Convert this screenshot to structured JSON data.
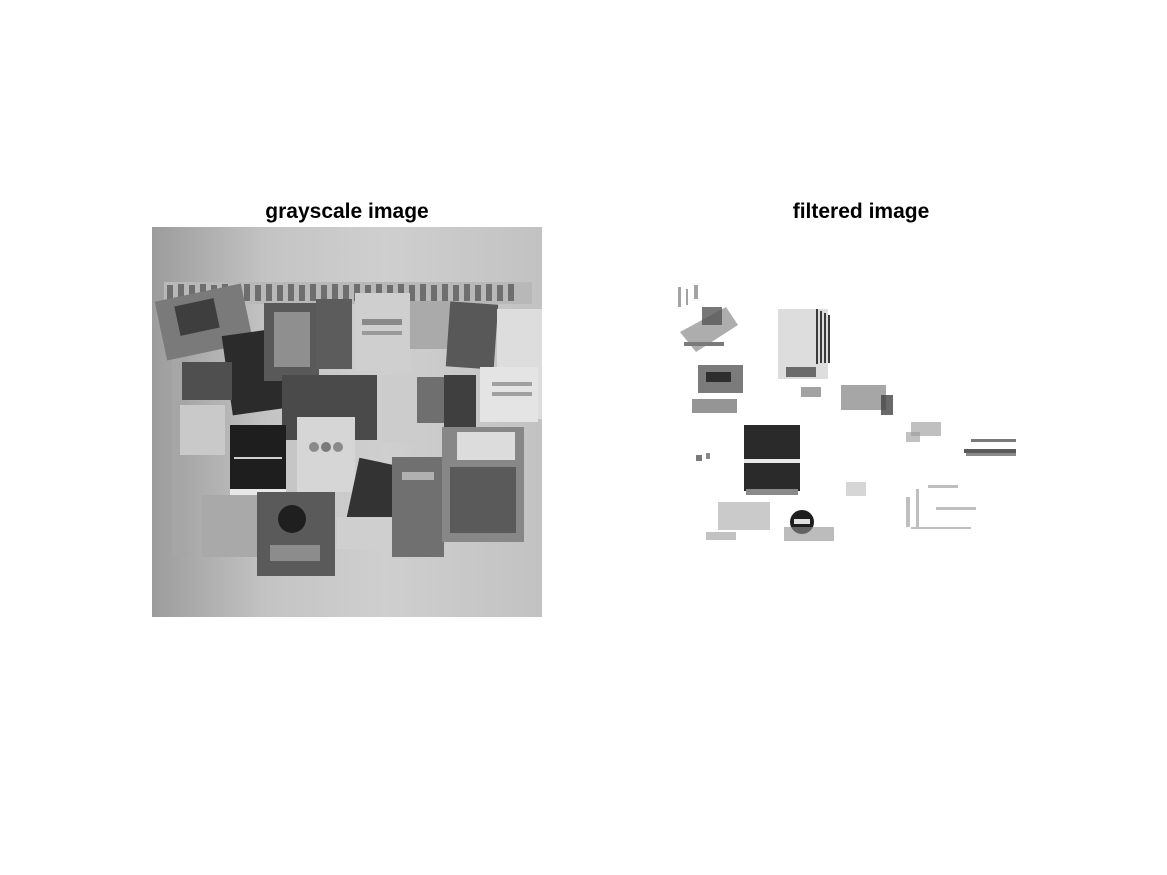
{
  "figure": {
    "panels": [
      {
        "id": "left",
        "title": "grayscale image",
        "image_icon": "bulletin-board-photo-grayscale"
      },
      {
        "id": "right",
        "title": "filtered image",
        "image_icon": "bulletin-board-photo-filtered"
      }
    ],
    "colors": {
      "background": "#ffffff",
      "title": "#000000",
      "wall_gray": "#c6c6c6",
      "dark_poster": "#1e1e1e"
    }
  }
}
